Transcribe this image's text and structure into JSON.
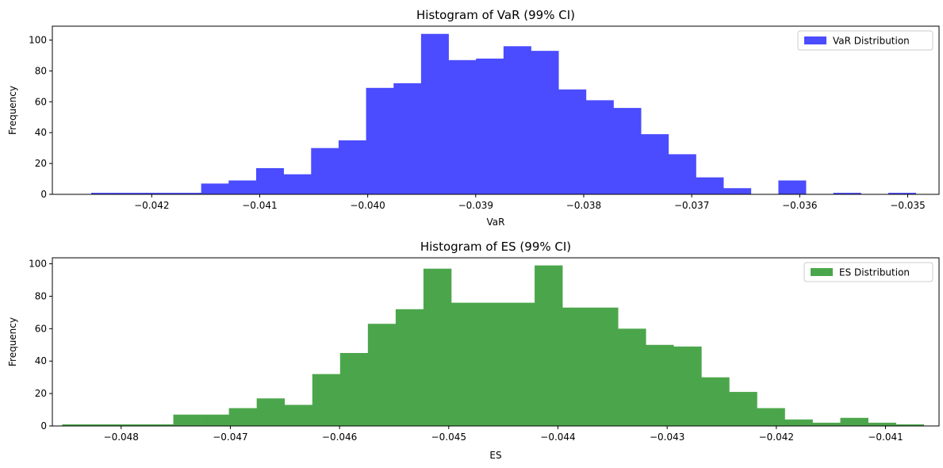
{
  "colors": {
    "var": "#4b4bff",
    "es": "#4ba64b",
    "axis": "#000000"
  },
  "chart_data": [
    {
      "type": "bar",
      "title": "Histogram of VaR (99% CI)",
      "xlabel": "VaR",
      "ylabel": "Frequency",
      "legend": "VaR Distribution",
      "legend_position": "top-right",
      "xlim": [
        -0.04292,
        -0.03471
      ],
      "ylim": [
        0,
        109
      ],
      "x_ticks": [
        -0.042,
        -0.041,
        -0.04,
        -0.039,
        -0.038,
        -0.037,
        -0.036,
        -0.035
      ],
      "x_tick_labels": [
        "−0.042",
        "−0.041",
        "−0.040",
        "−0.039",
        "−0.038",
        "−0.037",
        "−0.036",
        "−0.035"
      ],
      "y_ticks": [
        0,
        20,
        40,
        60,
        80,
        100
      ],
      "y_tick_labels": [
        "0",
        "20",
        "40",
        "60",
        "80",
        "100"
      ],
      "bin_start": -0.04256,
      "bin_width": 0.0002545,
      "counts": [
        1,
        1,
        1,
        1,
        7,
        9,
        17,
        13,
        30,
        35,
        69,
        72,
        104,
        87,
        88,
        96,
        93,
        68,
        61,
        56,
        39,
        26,
        11,
        4,
        0,
        9,
        0,
        1,
        0,
        1
      ]
    },
    {
      "type": "bar",
      "title": "Histogram of ES (99% CI)",
      "xlabel": "ES",
      "ylabel": "Frequency",
      "legend": "ES Distribution",
      "legend_position": "top-right",
      "xlim": [
        -0.04863,
        -0.04051
      ],
      "ylim": [
        0,
        103.7
      ],
      "x_ticks": [
        -0.048,
        -0.047,
        -0.046,
        -0.045,
        -0.044,
        -0.043,
        -0.042,
        -0.041
      ],
      "x_tick_labels": [
        "−0.048",
        "−0.047",
        "−0.046",
        "−0.045",
        "−0.044",
        "−0.043",
        "−0.042",
        "−0.041"
      ],
      "y_ticks": [
        0,
        20,
        40,
        60,
        80,
        100
      ],
      "y_tick_labels": [
        "0",
        "20",
        "40",
        "60",
        "80",
        "100"
      ],
      "bin_start": -0.04854,
      "bin_width": 0.0002545,
      "counts": [
        1,
        1,
        1,
        1,
        7,
        7,
        11,
        17,
        13,
        32,
        45,
        63,
        72,
        97,
        76,
        76,
        76,
        99,
        73,
        73,
        60,
        50,
        49,
        30,
        21,
        11,
        4,
        2,
        5,
        2,
        1
      ]
    }
  ]
}
